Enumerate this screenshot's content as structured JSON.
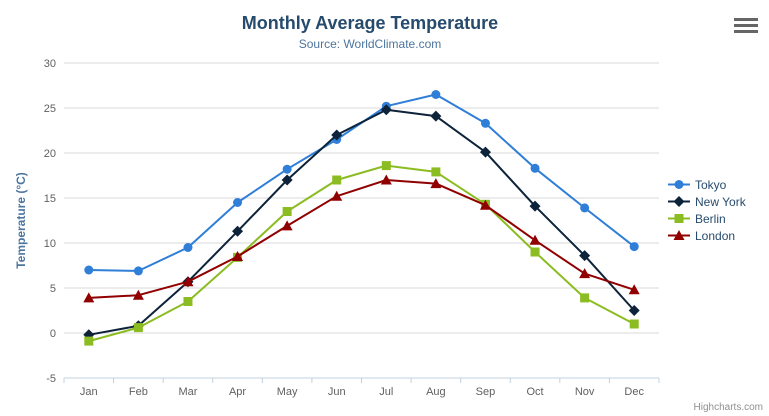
{
  "header": {
    "title": "Monthly Average Temperature",
    "subtitle": "Source: WorldClimate.com"
  },
  "credit": "Highcharts.com",
  "theme": {
    "background": "#ffffff",
    "title_color": "#274b6d",
    "subtitle_color": "#4d759e",
    "axis_title_color": "#4d759e",
    "axis_label_color": "#606060",
    "grid_color": "#d8d8d8",
    "axis_line_color": "#c0d0e0",
    "legend_text_color": "#274b6d",
    "credit_color": "#909090",
    "menu_icon_color": "#666666"
  },
  "chart_data": {
    "type": "line",
    "title": "Monthly Average Temperature",
    "subtitle": "Source: WorldClimate.com",
    "xlabel": "",
    "ylabel": "Temperature (°C)",
    "ylim": [
      -5,
      30
    ],
    "ytick_step": 5,
    "grid": true,
    "legend_position": "right",
    "categories": [
      "Jan",
      "Feb",
      "Mar",
      "Apr",
      "May",
      "Jun",
      "Jul",
      "Aug",
      "Sep",
      "Oct",
      "Nov",
      "Dec"
    ],
    "series": [
      {
        "name": "Tokyo",
        "color": "#2f7ed8",
        "marker": "circle",
        "values": [
          7.0,
          6.9,
          9.5,
          14.5,
          18.2,
          21.5,
          25.2,
          26.5,
          23.3,
          18.3,
          13.9,
          9.6
        ]
      },
      {
        "name": "New York",
        "color": "#0d233a",
        "marker": "diamond",
        "values": [
          -0.2,
          0.8,
          5.7,
          11.3,
          17.0,
          22.0,
          24.8,
          24.1,
          20.1,
          14.1,
          8.6,
          2.5
        ]
      },
      {
        "name": "Berlin",
        "color": "#8bbc21",
        "marker": "square",
        "values": [
          -0.9,
          0.6,
          3.5,
          8.4,
          13.5,
          17.0,
          18.6,
          17.9,
          14.3,
          9.0,
          3.9,
          1.0
        ]
      },
      {
        "name": "London",
        "color": "#910000",
        "marker": "triangle",
        "values": [
          3.9,
          4.2,
          5.7,
          8.5,
          11.9,
          15.2,
          17.0,
          16.6,
          14.2,
          10.3,
          6.6,
          4.8
        ]
      }
    ]
  }
}
